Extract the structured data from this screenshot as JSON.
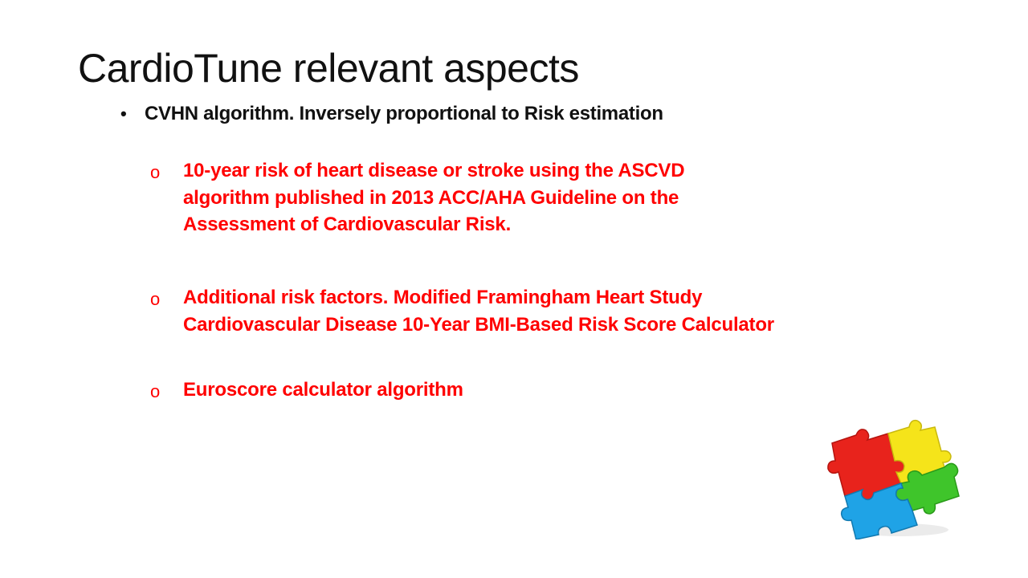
{
  "slide": {
    "title": "CardioTune relevant aspects",
    "bullet": {
      "marker": "•",
      "text": "CVHN algorithm. Inversely proportional to Risk estimation"
    },
    "sub_items": [
      {
        "marker": "o",
        "lines": [
          "10-year risk of heart disease or stroke using the ASCVD",
          "algorithm published in 2013 ACC/AHA Guideline on the",
          "Assessment of Cardiovascular Risk."
        ]
      },
      {
        "marker": "o",
        "lines": [
          "Additional risk factors. Modified Framingham Heart Study",
          "Cardiovascular Disease 10-Year BMI-Based Risk Score Calculator"
        ]
      },
      {
        "marker": "o",
        "lines": [
          "Euroscore calculator algorithm"
        ]
      }
    ]
  },
  "colors": {
    "title": "#111111",
    "bullet_text": "#111111",
    "sub_text": "#ff0000",
    "puzzle_red": "#e8231c",
    "puzzle_yellow": "#f5e41a",
    "puzzle_green": "#3fc52b",
    "puzzle_blue": "#1fa3e6"
  },
  "image": {
    "icon": "puzzle-pieces-icon"
  }
}
